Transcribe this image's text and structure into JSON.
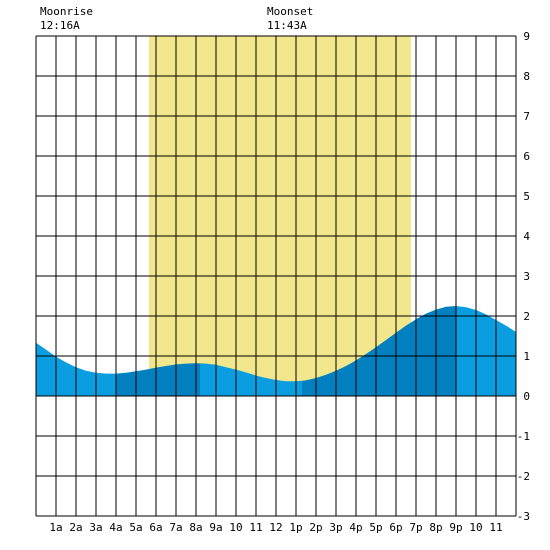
{
  "moon": {
    "moonrise_label": "Moonrise",
    "moonrise_time": "12:16A",
    "moonset_label": "Moonset",
    "moonset_time": "11:43A"
  },
  "chart_data": {
    "type": "area",
    "title": "",
    "xlabel": "",
    "ylabel": "",
    "x_tick_labels": [
      "1a",
      "2a",
      "3a",
      "4a",
      "5a",
      "6a",
      "7a",
      "8a",
      "9a",
      "10",
      "11",
      "12",
      "1p",
      "2p",
      "3p",
      "4p",
      "5p",
      "6p",
      "7p",
      "8p",
      "9p",
      "10",
      "11"
    ],
    "y_tick_labels": [
      "-3",
      "-2",
      "-1",
      "0",
      "1",
      "2",
      "3",
      "4",
      "5",
      "6",
      "7",
      "8",
      "9"
    ],
    "xlim": [
      0,
      24
    ],
    "ylim": [
      -3,
      9
    ],
    "grid": true,
    "daylight": {
      "start_hour": 5.65,
      "end_hour": 18.75
    },
    "tide_extremes": [
      {
        "hour": 4.0,
        "height": 0.55,
        "kind": "low"
      },
      {
        "hour": 8.2,
        "height": 0.82,
        "kind": "high"
      },
      {
        "hour": 13.3,
        "height": 0.37,
        "kind": "low"
      },
      {
        "hour": 21.0,
        "height": 2.25,
        "kind": "high"
      }
    ],
    "series": [
      {
        "x": [
          0,
          0.5,
          1,
          1.5,
          2,
          2.5,
          3,
          3.5,
          4,
          4.5,
          5,
          5.5,
          6,
          6.5,
          7,
          7.5,
          8,
          8.5,
          9,
          9.5,
          10,
          10.5,
          11,
          11.5,
          12,
          12.5,
          13,
          13.5,
          14,
          14.5,
          15,
          15.5,
          16,
          16.5,
          17,
          17.5,
          18,
          18.5,
          19,
          19.5,
          20,
          20.5,
          21,
          21.5,
          22,
          22.5,
          23,
          23.5,
          24
        ],
        "values": [
          1.33,
          1.16,
          0.98,
          0.84,
          0.72,
          0.63,
          0.58,
          0.56,
          0.56,
          0.58,
          0.62,
          0.66,
          0.71,
          0.75,
          0.79,
          0.81,
          0.82,
          0.81,
          0.78,
          0.72,
          0.66,
          0.59,
          0.51,
          0.45,
          0.4,
          0.37,
          0.37,
          0.39,
          0.45,
          0.53,
          0.63,
          0.75,
          0.89,
          1.05,
          1.22,
          1.4,
          1.58,
          1.76,
          1.92,
          2.06,
          2.16,
          2.23,
          2.25,
          2.22,
          2.15,
          2.04,
          1.9,
          1.76,
          1.6
        ]
      }
    ]
  },
  "colors": {
    "daylight": "#f2e78c",
    "tide_light": "#0a9ee0",
    "tide_dark": "#0280bf",
    "grid": "#000000",
    "background": "#ffffff"
  }
}
